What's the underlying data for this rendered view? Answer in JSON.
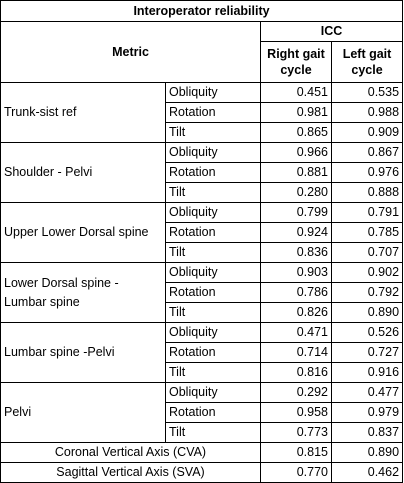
{
  "table": {
    "title": "Interoperator reliability",
    "metric_header": "Metric",
    "icc_header": "ICC",
    "col_right": "Right gait cycle",
    "col_left": "Left gait cycle",
    "groups": [
      {
        "name": "Trunk-sist ref",
        "rows": [
          {
            "label": "Obliquity",
            "right": "0.451",
            "left": "0.535"
          },
          {
            "label": "Rotation",
            "right": "0.981",
            "left": "0.988"
          },
          {
            "label": "Tilt",
            "right": "0.865",
            "left": "0.909"
          }
        ]
      },
      {
        "name": "Shoulder - Pelvi",
        "rows": [
          {
            "label": "Obliquity",
            "right": "0.966",
            "left": "0.867"
          },
          {
            "label": "Rotation",
            "right": "0.881",
            "left": "0.976"
          },
          {
            "label": "Tilt",
            "right": "0.280",
            "left": "0.888"
          }
        ]
      },
      {
        "name": "Upper Lower Dorsal spine",
        "rows": [
          {
            "label": "Obliquity",
            "right": "0.799",
            "left": "0.791"
          },
          {
            "label": "Rotation",
            "right": "0.924",
            "left": "0.785"
          },
          {
            "label": "Tilt",
            "right": "0.836",
            "left": "0.707"
          }
        ]
      },
      {
        "name": "Lower Dorsal spine - Lumbar spine",
        "rows": [
          {
            "label": "Obliquity",
            "right": "0.903",
            "left": "0.902"
          },
          {
            "label": "Rotation",
            "right": "0.786",
            "left": "0.792"
          },
          {
            "label": "Tilt",
            "right": "0.826",
            "left": "0.890"
          }
        ]
      },
      {
        "name": "Lumbar spine -Pelvi",
        "rows": [
          {
            "label": "Obliquity",
            "right": "0.471",
            "left": "0.526"
          },
          {
            "label": "Rotation",
            "right": "0.714",
            "left": "0.727"
          },
          {
            "label": "Tilt",
            "right": "0.816",
            "left": "0.916"
          }
        ]
      },
      {
        "name": "Pelvi",
        "rows": [
          {
            "label": "Obliquity",
            "right": "0.292",
            "left": "0.477"
          },
          {
            "label": "Rotation",
            "right": "0.958",
            "left": "0.979"
          },
          {
            "label": "Tilt",
            "right": "0.773",
            "left": "0.837"
          }
        ]
      }
    ],
    "footer_rows": [
      {
        "label": "Coronal Vertical Axis (CVA)",
        "right": "0.815",
        "left": "0.890"
      },
      {
        "label": "Sagittal Vertical Axis (SVA)",
        "right": "0.770",
        "left": "0.462"
      }
    ]
  }
}
